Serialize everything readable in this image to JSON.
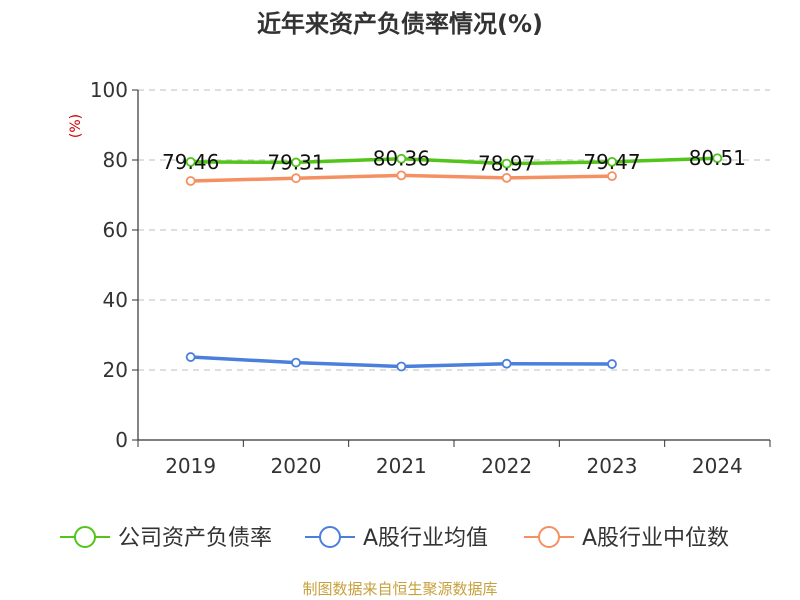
{
  "chart_data": {
    "type": "line",
    "title": "近年来资产负债率情况(%)",
    "xlabel": "",
    "ylabel": "(%)",
    "categories": [
      "2019",
      "2020",
      "2021",
      "2022",
      "2023",
      "2024"
    ],
    "ylim": [
      0,
      100
    ],
    "yticks": [
      0,
      20,
      40,
      60,
      80,
      100
    ],
    "grid": true,
    "legend_position": "bottom",
    "series": [
      {
        "name": "公司资产负债率",
        "color": "#52c41a",
        "values": [
          79.46,
          79.31,
          80.36,
          78.97,
          79.47,
          80.51
        ],
        "labels": [
          "79.46",
          "79.31",
          "80.36",
          "78.97",
          "79.47",
          "80.51"
        ]
      },
      {
        "name": "A股行业均值",
        "color": "#4a7fdc",
        "values": [
          23.7,
          22.1,
          21.0,
          21.8,
          21.7,
          null
        ]
      },
      {
        "name": "A股行业中位数",
        "color": "#f59062",
        "values": [
          74.0,
          74.8,
          75.6,
          74.9,
          75.4,
          null
        ]
      }
    ],
    "source": "制图数据来自恒生聚源数据库"
  },
  "colors": {
    "title": "#333333",
    "ylabel": "#cc0000",
    "source": "#c8a03c",
    "grid": "#cccccc",
    "axis": "#333333"
  }
}
